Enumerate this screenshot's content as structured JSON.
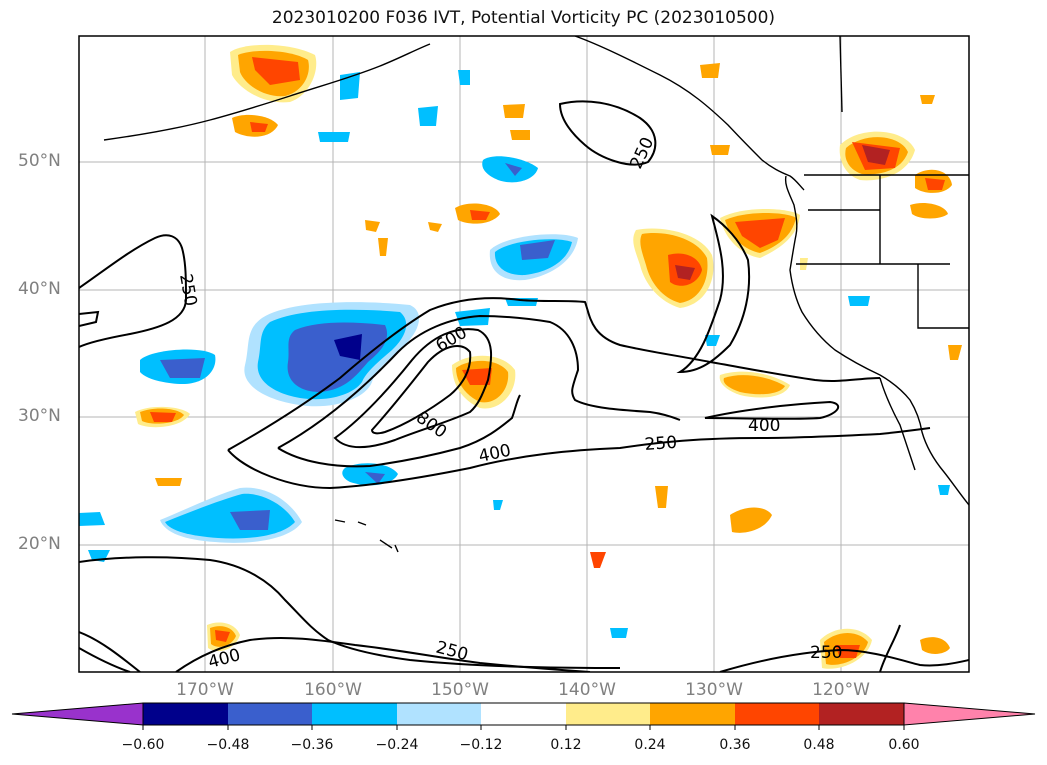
{
  "title": "2023010200 F036 IVT, Potential Vorticity PC (2023010500)",
  "lat_labels": [
    "50°N",
    "40°N",
    "30°N",
    "20°N"
  ],
  "lon_labels": [
    "170°W",
    "160°W",
    "150°W",
    "140°W",
    "130°W",
    "120°W"
  ],
  "contour_labels": [
    "250",
    "250",
    "600",
    "800",
    "400",
    "400",
    "250",
    "250",
    "400",
    "250"
  ],
  "colorbar": {
    "ticks": [
      "−0.60",
      "−0.48",
      "−0.36",
      "−0.24",
      "−0.12",
      "0.12",
      "0.24",
      "0.36",
      "0.48",
      "0.60"
    ],
    "colors": [
      "#9932cc",
      "#00008b",
      "#3a5fcd",
      "#00bfff",
      "#b0e2ff",
      "#ffffff",
      "#ffec8b",
      "#ffa500",
      "#ff4500",
      "#b22222",
      "#ff82ab"
    ]
  }
}
